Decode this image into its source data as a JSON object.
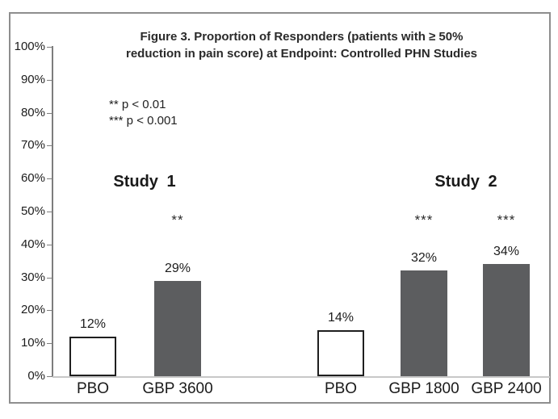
{
  "chart_data": {
    "type": "bar",
    "title": "Figure 3. Proportion of Responders (patients with ≥ 50% reduction in pain score) at Endpoint: Controlled PHN Studies",
    "title_lines": [
      "Figure 3. Proportion of Responders (patients with ≥ 50%",
      "reduction in pain score) at Endpoint: Controlled PHN Studies"
    ],
    "annotations": [
      "** p < 0.01",
      "*** p < 0.001"
    ],
    "ylabel": "",
    "ylim": [
      0,
      100
    ],
    "ytick_step": 10,
    "ytick_labels": [
      "0%",
      "10%",
      "20%",
      "30%",
      "40%",
      "50%",
      "60%",
      "70%",
      "80%",
      "90%",
      "100%"
    ],
    "grid": "off",
    "groups": [
      {
        "name": "Study 1",
        "bars": [
          {
            "label": "PBO",
            "value": 12,
            "value_label": "12%",
            "style": "outline",
            "significance": ""
          },
          {
            "label": "GBP 3600",
            "value": 29,
            "value_label": "29%",
            "style": "filled",
            "significance": "**"
          }
        ]
      },
      {
        "name": "Study 2",
        "bars": [
          {
            "label": "PBO",
            "value": 14,
            "value_label": "14%",
            "style": "outline",
            "significance": ""
          },
          {
            "label": "GBP 1800",
            "value": 32,
            "value_label": "32%",
            "style": "filled",
            "significance": "***"
          },
          {
            "label": "GBP 2400",
            "value": 34,
            "value_label": "34%",
            "style": "filled",
            "significance": "***"
          }
        ]
      }
    ],
    "colors": {
      "filled_bar": "#5c5d5f",
      "outline_bar_fill": "#ffffff",
      "outline_bar_border": "#1f1f1f",
      "axis": "#7d7d7d",
      "baseline": "#c8c8c8",
      "frame": "#8e8e8e",
      "text": "#1c1c1c"
    }
  }
}
